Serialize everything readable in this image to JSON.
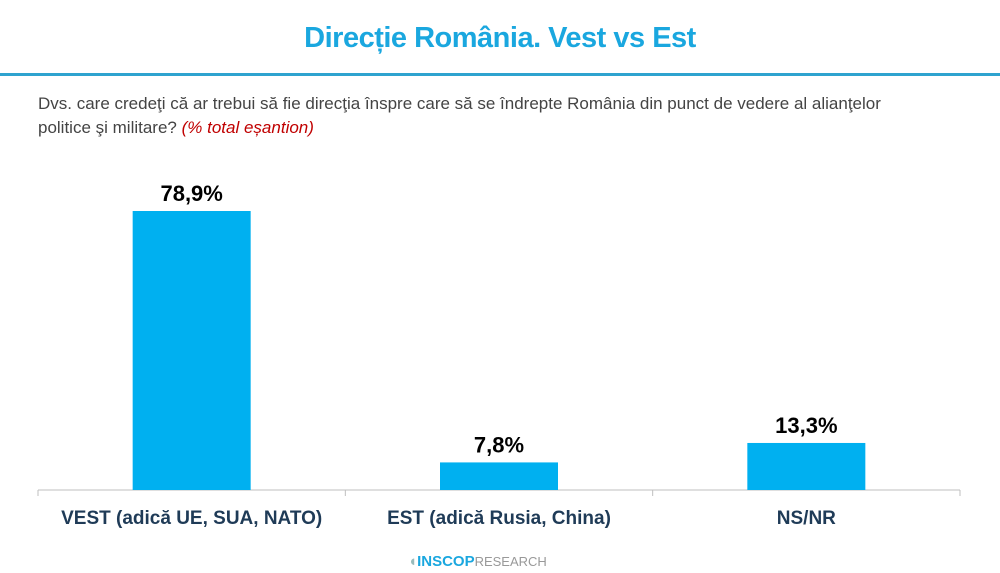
{
  "title": "Direcție România. Vest vs Est",
  "question": "Dvs. care credeţi că ar trebui să fie direcţia înspre care să se îndrepte România din punct de vedere al alianţelor politice şi militare?",
  "note": "(% total eșantion)",
  "logo": {
    "brand": "INSCOP",
    "suffix": "RESEARCH"
  },
  "colors": {
    "bar": "#00b0f0",
    "title": "#1aa7df",
    "labels": "#1f3b57"
  },
  "chart_data": {
    "type": "bar",
    "categories": [
      "VEST (adică UE, SUA, NATO)",
      "EST (adică Rusia, China)",
      "NS/NR"
    ],
    "values": [
      78.9,
      7.8,
      13.3
    ],
    "data_labels": [
      "78,9%",
      "7,8%",
      "13,3%"
    ],
    "ylim": [
      0,
      100
    ],
    "grid": false
  }
}
